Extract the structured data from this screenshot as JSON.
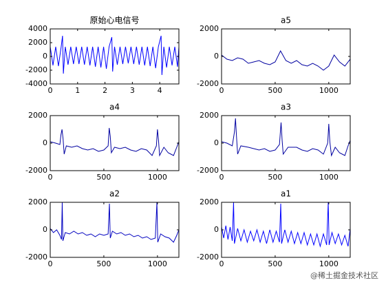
{
  "chart_data": [
    {
      "type": "line",
      "title": "原始心电信号",
      "color": "#0000ff",
      "xlim": [
        0,
        4.7
      ],
      "ylim": [
        -4000,
        4000
      ],
      "xticks": [
        0,
        1,
        2,
        3,
        4
      ],
      "yticks": [
        -4000,
        -2000,
        0,
        2000,
        4000
      ],
      "x": [
        0,
        0.1,
        0.2,
        0.3,
        0.4,
        0.45,
        0.48,
        0.55,
        0.65,
        0.75,
        0.85,
        0.95,
        1.05,
        1.15,
        1.25,
        1.35,
        1.45,
        1.55,
        1.65,
        1.75,
        1.85,
        1.95,
        2.05,
        2.15,
        2.25,
        2.28,
        2.35,
        2.45,
        2.55,
        2.65,
        2.75,
        2.85,
        2.95,
        3.05,
        3.15,
        3.25,
        3.35,
        3.45,
        3.55,
        3.65,
        3.75,
        3.85,
        3.95,
        4.05,
        4.08,
        4.15,
        4.25,
        4.35,
        4.45,
        4.55,
        4.65,
        4.7
      ],
      "values": [
        1400,
        -1300,
        1400,
        -1400,
        1400,
        3000,
        -2500,
        1400,
        -1200,
        1400,
        -1100,
        1400,
        -1100,
        1400,
        -1200,
        1400,
        -1300,
        1400,
        -1500,
        1400,
        -1600,
        1400,
        -1800,
        1400,
        2800,
        -2200,
        1400,
        -1200,
        1400,
        -1100,
        1400,
        -1000,
        1400,
        -1100,
        1400,
        -1200,
        1400,
        -1300,
        1400,
        -1400,
        1400,
        -1700,
        1400,
        3000,
        -2700,
        1400,
        -1600,
        1400,
        -1300,
        1400,
        -1500,
        1400
      ]
    },
    {
      "type": "line",
      "title": "a5",
      "color": "#0000a0",
      "xlim": [
        0,
        1200
      ],
      "ylim": [
        -2000,
        2000
      ],
      "xticks": [
        0,
        500,
        1000
      ],
      "yticks": [
        -2000,
        0,
        2000
      ],
      "x": [
        0,
        50,
        100,
        150,
        200,
        250,
        300,
        350,
        400,
        450,
        500,
        550,
        600,
        650,
        700,
        750,
        800,
        850,
        900,
        950,
        1000,
        1050,
        1100,
        1150,
        1200
      ],
      "values": [
        100,
        -200,
        -300,
        -100,
        -200,
        -500,
        -400,
        -300,
        -500,
        -600,
        -400,
        400,
        -300,
        -500,
        -300,
        -600,
        -700,
        -500,
        -700,
        -1000,
        -700,
        100,
        -400,
        -700,
        -200
      ]
    },
    {
      "type": "line",
      "title": "a4",
      "color": "#0000a0",
      "xlim": [
        0,
        1200
      ],
      "ylim": [
        -2000,
        2000
      ],
      "xticks": [
        0,
        500,
        1000
      ],
      "yticks": [
        -2000,
        0,
        2000
      ],
      "x": [
        0,
        50,
        90,
        100,
        110,
        120,
        130,
        150,
        200,
        250,
        300,
        350,
        400,
        450,
        500,
        540,
        550,
        560,
        570,
        600,
        650,
        700,
        750,
        800,
        850,
        900,
        950,
        990,
        1000,
        1010,
        1020,
        1060,
        1100,
        1150,
        1180,
        1200
      ],
      "values": [
        100,
        0,
        -100,
        600,
        1000,
        300,
        -800,
        -200,
        -300,
        -200,
        -400,
        -500,
        -400,
        -600,
        -500,
        -200,
        1100,
        500,
        -700,
        -300,
        -400,
        -300,
        -500,
        -600,
        -400,
        -500,
        -900,
        -200,
        1000,
        200,
        -900,
        -300,
        -700,
        -900,
        -300,
        100
      ]
    },
    {
      "type": "line",
      "title": "a3",
      "color": "#0000a0",
      "xlim": [
        0,
        1200
      ],
      "ylim": [
        -2000,
        2000
      ],
      "xticks": [
        0,
        500,
        1000
      ],
      "yticks": [
        -2000,
        0,
        2000
      ],
      "x": [
        0,
        50,
        100,
        120,
        130,
        140,
        150,
        180,
        250,
        300,
        350,
        400,
        450,
        500,
        540,
        555,
        565,
        575,
        620,
        700,
        750,
        800,
        850,
        900,
        950,
        990,
        1000,
        1010,
        1025,
        1060,
        1100,
        1150,
        1180,
        1200
      ],
      "values": [
        100,
        0,
        -200,
        800,
        1800,
        400,
        -800,
        -200,
        -300,
        -400,
        -500,
        -400,
        -600,
        -500,
        -100,
        1500,
        200,
        -800,
        -300,
        -300,
        -500,
        -600,
        -400,
        -500,
        -800,
        0,
        1400,
        100,
        -900,
        -300,
        -700,
        -900,
        -200,
        200
      ]
    },
    {
      "type": "line",
      "title": "a2",
      "color": "#0000c0",
      "xlim": [
        0,
        1200
      ],
      "ylim": [
        -2000,
        2000
      ],
      "xticks": [
        0,
        500,
        1000
      ],
      "yticks": [
        -2000,
        0,
        2000
      ],
      "x": [
        0,
        30,
        60,
        90,
        105,
        112,
        118,
        140,
        180,
        220,
        260,
        300,
        340,
        380,
        420,
        460,
        500,
        540,
        552,
        560,
        580,
        620,
        660,
        700,
        740,
        780,
        820,
        860,
        900,
        940,
        980,
        995,
        1003,
        1030,
        1070,
        1110,
        1150,
        1180,
        1200
      ],
      "values": [
        100,
        -200,
        0,
        -400,
        -700,
        2000,
        -800,
        -200,
        -300,
        -100,
        -300,
        -200,
        -400,
        -300,
        -500,
        -300,
        -400,
        -300,
        1900,
        -600,
        -100,
        -300,
        -200,
        -400,
        -300,
        -500,
        -400,
        -600,
        -500,
        -700,
        -600,
        2000,
        -900,
        -300,
        -500,
        -600,
        -900,
        -400,
        0
      ]
    },
    {
      "type": "line",
      "title": "a1",
      "color": "#0000ff",
      "xlim": [
        0,
        1200
      ],
      "ylim": [
        -2000,
        2000
      ],
      "xticks": [
        0,
        500,
        1000
      ],
      "yticks": [
        -2000,
        0,
        2000
      ],
      "x": [
        0,
        20,
        40,
        60,
        80,
        100,
        112,
        120,
        150,
        180,
        210,
        240,
        270,
        300,
        330,
        360,
        390,
        420,
        450,
        480,
        510,
        540,
        552,
        560,
        590,
        620,
        650,
        680,
        710,
        740,
        770,
        800,
        830,
        860,
        890,
        920,
        950,
        980,
        995,
        1003,
        1030,
        1060,
        1090,
        1120,
        1150,
        1180,
        1200
      ],
      "values": [
        200,
        -600,
        300,
        -700,
        200,
        -800,
        2000,
        -1000,
        100,
        -800,
        0,
        -900,
        -100,
        -800,
        0,
        -900,
        -100,
        -1000,
        0,
        -900,
        -100,
        -900,
        1900,
        -1000,
        0,
        -900,
        -100,
        -1000,
        -200,
        -1000,
        -200,
        -1100,
        -300,
        -1100,
        -300,
        -1200,
        -300,
        -1100,
        2000,
        -1100,
        -200,
        -1000,
        -300,
        -1100,
        -400,
        -1200,
        100
      ]
    }
  ],
  "watermark": "@稀土掘金技术社区"
}
